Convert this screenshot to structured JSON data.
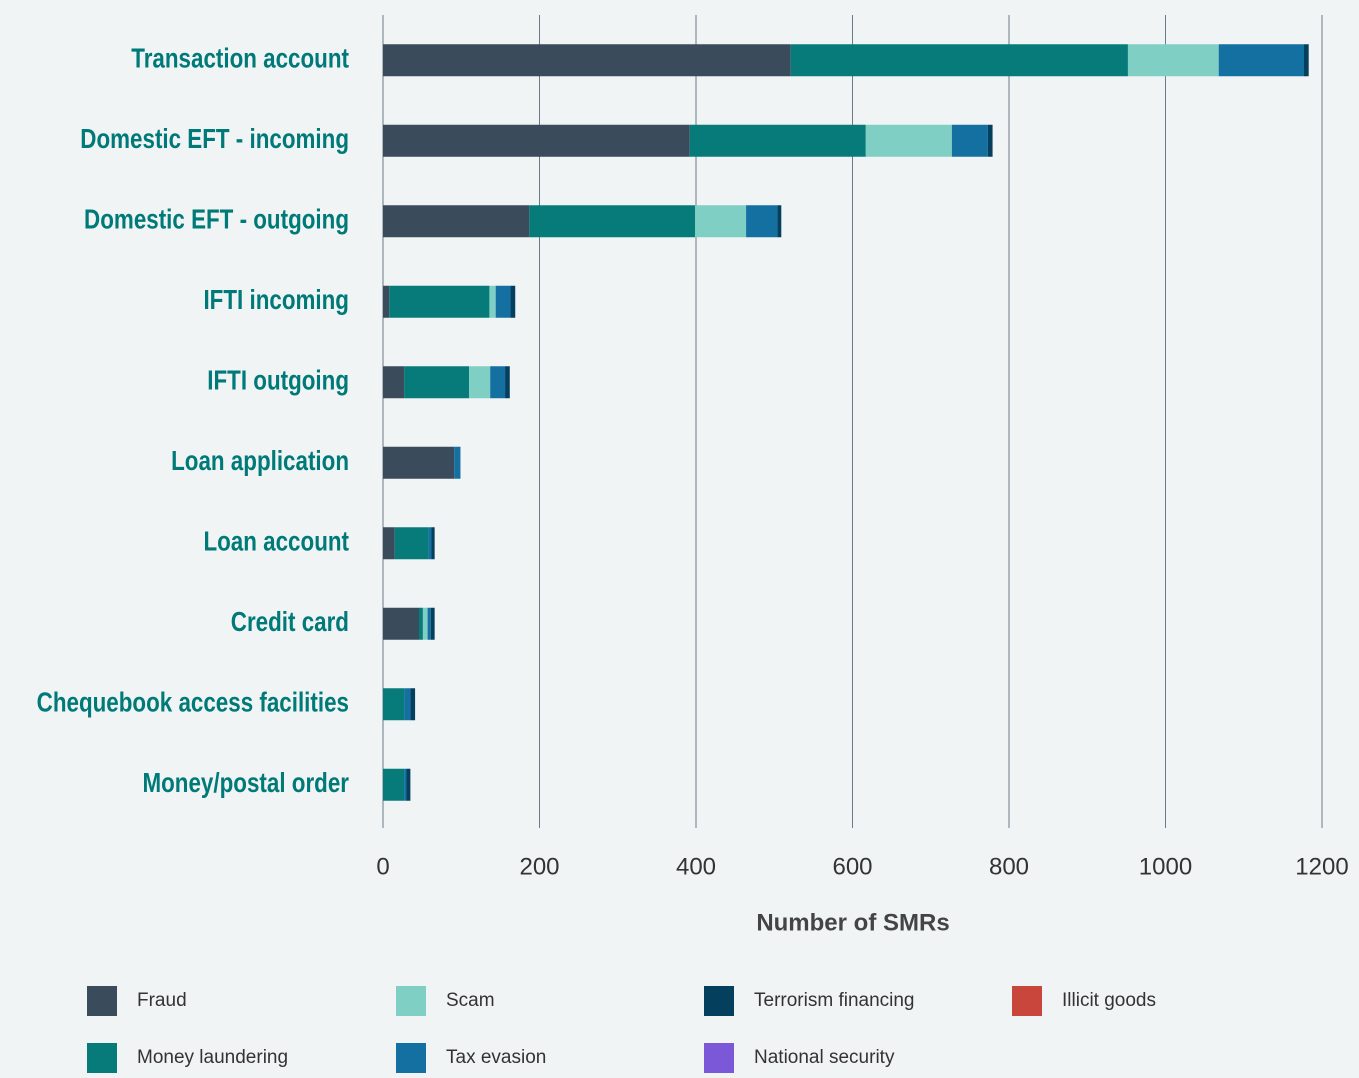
{
  "chart_data": {
    "type": "stacked_bar_horizontal",
    "categories": [
      "Transaction account",
      "Domestic EFT - incoming",
      "Domestic EFT - outgoing",
      "IFTI incoming",
      "IFTI outgoing",
      "Loan application",
      "Loan account",
      "Credit card",
      "Chequebook access facilities",
      "Money/postal order"
    ],
    "series": [
      {
        "name": "Fraud",
        "color": "#3a4b5b",
        "values": [
          521,
          392,
          187,
          8,
          27,
          91,
          15,
          46,
          0,
          0
        ]
      },
      {
        "name": "Money laundering",
        "color": "#077b7a",
        "values": [
          431,
          225,
          212,
          128,
          83,
          0,
          43,
          5,
          27,
          27
        ]
      },
      {
        "name": "Scam",
        "color": "#80cfc4",
        "values": [
          116,
          110,
          65,
          8,
          27,
          0,
          0,
          6,
          0,
          0
        ]
      },
      {
        "name": "Tax evasion",
        "color": "#1470a0",
        "values": [
          109,
          46,
          40,
          19,
          19,
          8,
          4,
          4,
          8,
          3
        ]
      },
      {
        "name": "Terrorism financing",
        "color": "#053f5e",
        "values": [
          6,
          6,
          5,
          6,
          6,
          0,
          4,
          5,
          6,
          5
        ]
      },
      {
        "name": "National security",
        "color": "#7b58d8",
        "values": [
          0,
          0,
          0,
          0,
          0,
          0,
          0,
          0,
          0,
          0
        ]
      },
      {
        "name": "Illicit goods",
        "color": "#c9463c",
        "values": [
          0,
          0,
          0,
          0,
          0,
          0,
          0,
          0,
          0,
          0
        ]
      }
    ],
    "xlabel": "Number of SMRs",
    "xlim": [
      0,
      1200
    ],
    "xticks": [
      0,
      200,
      400,
      600,
      800,
      1000,
      1200
    ],
    "grid": true,
    "legend": "bottom"
  }
}
